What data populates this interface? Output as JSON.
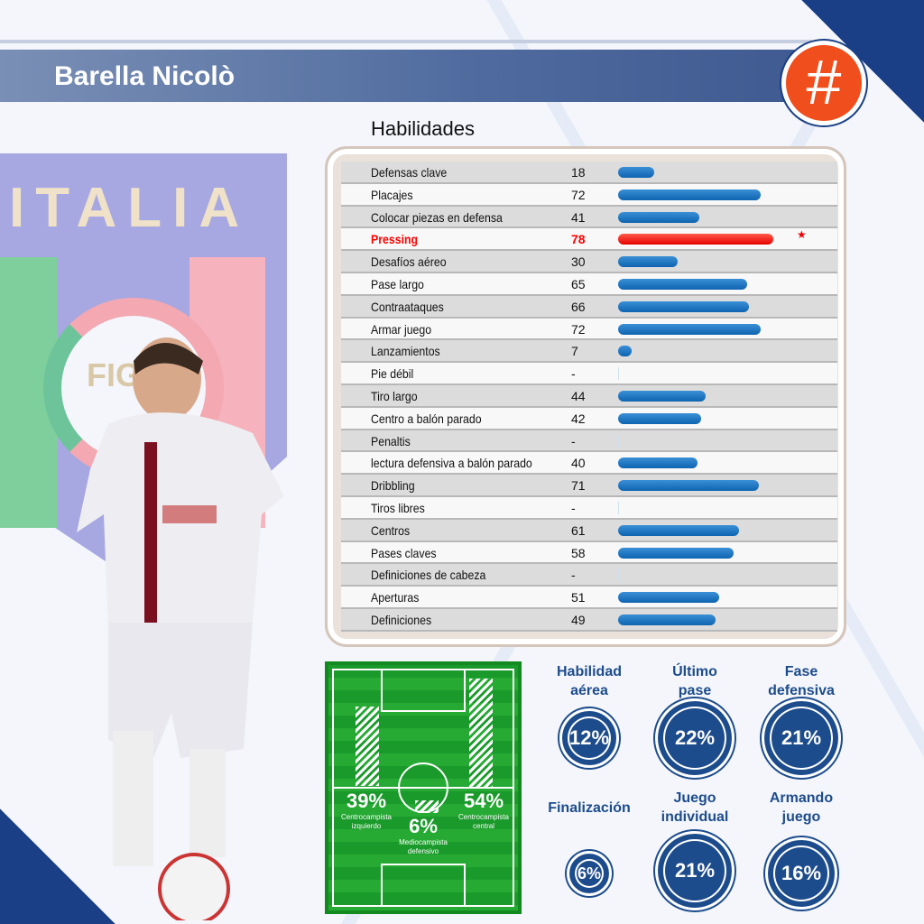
{
  "header": {
    "player_name": "Barella Nicolò",
    "hash_icon": "#"
  },
  "logo": {
    "text": "ITALIA",
    "sub": "FIGC"
  },
  "skills": {
    "title": "Habilidades",
    "max": 100,
    "highlight_color": "#e60000",
    "bar_color": "#1a72c0",
    "rows": [
      {
        "name": "Defensas clave",
        "value": "18"
      },
      {
        "name": "Placajes",
        "value": "72"
      },
      {
        "name": "Colocar piezas en defensa",
        "value": "41"
      },
      {
        "name": "Pressing",
        "value": "78",
        "highlight": true,
        "star": "★"
      },
      {
        "name": "Desafíos aéreo",
        "value": "30"
      },
      {
        "name": "Pase largo",
        "value": "65"
      },
      {
        "name": "Contraataques",
        "value": "66"
      },
      {
        "name": "Armar juego",
        "value": "72"
      },
      {
        "name": "Lanzamientos",
        "value": "7"
      },
      {
        "name": "Pie débil",
        "value": "-"
      },
      {
        "name": "Tiro largo",
        "value": "44"
      },
      {
        "name": "Centro a balón parado",
        "value": "42"
      },
      {
        "name": "Penaltis",
        "value": "-"
      },
      {
        "name": "lectura defensiva a balón parado",
        "value": "40"
      },
      {
        "name": "Dribbling",
        "value": "71"
      },
      {
        "name": "Tiros libres",
        "value": "-"
      },
      {
        "name": "Centros",
        "value": "61"
      },
      {
        "name": "Pases claves",
        "value": "58"
      },
      {
        "name": "Definiciones de cabeza",
        "value": "-"
      },
      {
        "name": "Aperturas",
        "value": "51"
      },
      {
        "name": "Definiciones",
        "value": "49"
      }
    ]
  },
  "positions": [
    {
      "pct": "39%",
      "label1": "Centrocampista",
      "label2": "izquierdo"
    },
    {
      "pct": "54%",
      "label1": "Centrocampista",
      "label2": "central"
    },
    {
      "pct": "6%",
      "label1": "Mediocampista",
      "label2": "defensivo"
    }
  ],
  "stats": [
    {
      "l1": "Habilidad",
      "l2": "aérea",
      "value": "12%"
    },
    {
      "l1": "Último",
      "l2": "pase",
      "value": "22%"
    },
    {
      "l1": "Fase",
      "l2": "defensiva",
      "value": "21%"
    },
    {
      "l1": "Finalización",
      "l2": "",
      "value": "6%"
    },
    {
      "l1": "Juego",
      "l2": "individual",
      "value": "21%"
    },
    {
      "l1": "Armando",
      "l2": "juego",
      "value": "16%"
    }
  ]
}
